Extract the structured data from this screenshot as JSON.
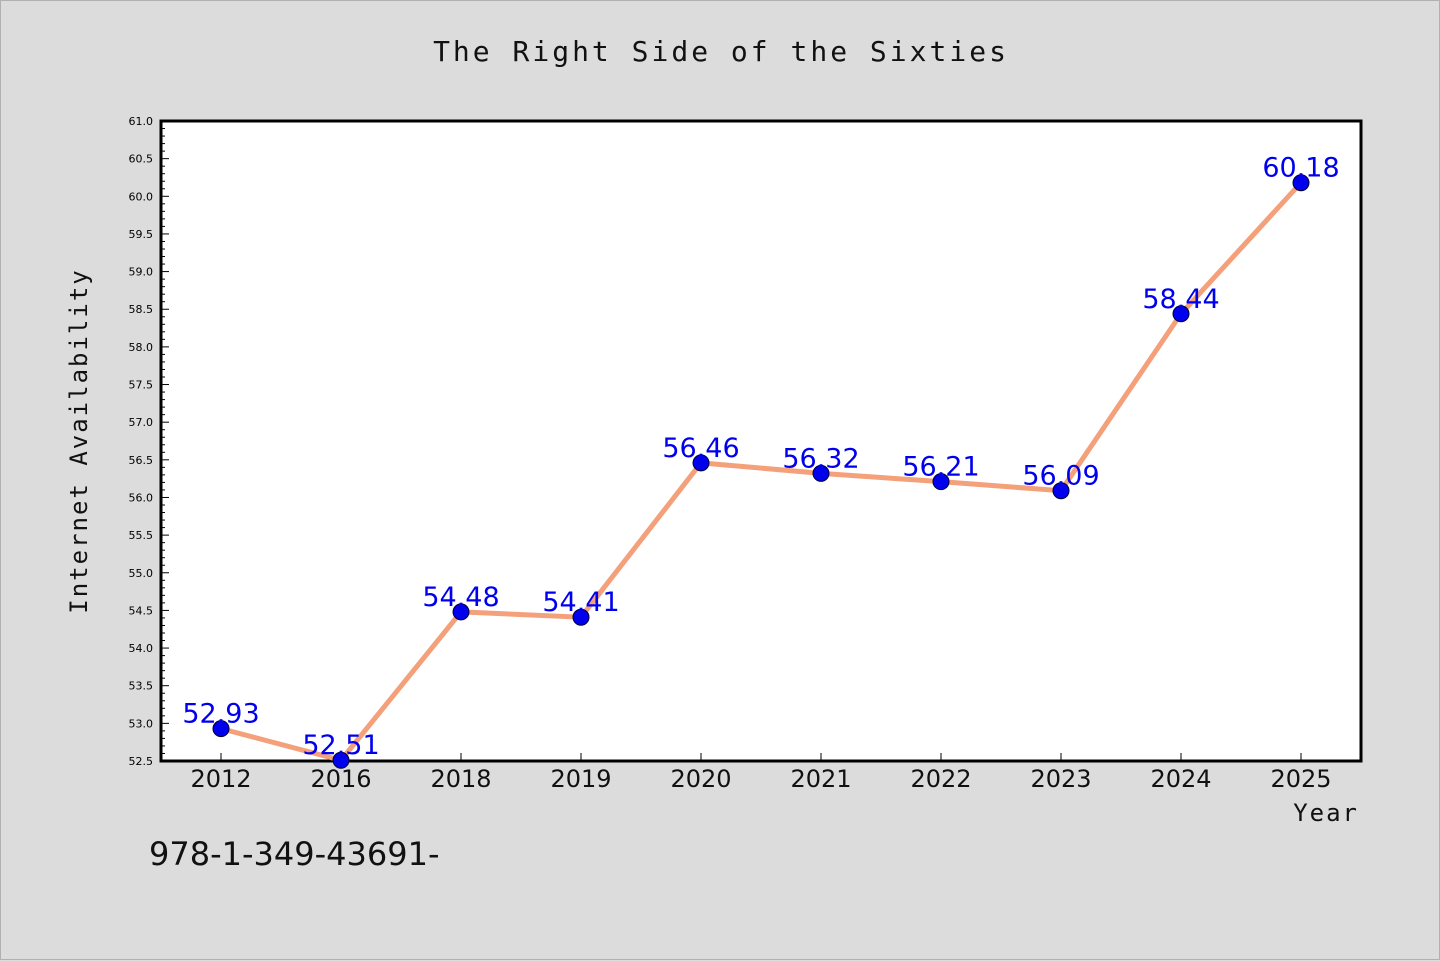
{
  "chart_data": {
    "type": "line",
    "title": "The Right Side of the Sixties",
    "xlabel": "Year",
    "ylabel": "Internet Availability",
    "categories": [
      "2012",
      "2016",
      "2018",
      "2019",
      "2020",
      "2021",
      "2022",
      "2023",
      "2024",
      "2025"
    ],
    "series": [
      {
        "values": [
          52.93,
          52.51,
          54.48,
          54.41,
          56.46,
          56.32,
          56.21,
          56.09,
          58.44,
          60.18
        ]
      }
    ],
    "ylim": [
      52.5,
      61.0
    ],
    "yticks": [
      "52.5",
      "53.0",
      "53.5",
      "54.0",
      "54.5",
      "55.0",
      "55.5",
      "56.0",
      "56.5",
      "57.0",
      "57.5",
      "58.0",
      "58.5",
      "59.0",
      "59.5",
      "60.0",
      "60.5",
      "61.0"
    ],
    "data_labels": [
      "52.93",
      "52.51",
      "54.48",
      "54.41",
      "56.46",
      "56.32",
      "56.21",
      "56.09",
      "58.44",
      "60.18"
    ],
    "grid": false,
    "colors": {
      "line": "#f4a07a",
      "marker": "#0000ee",
      "label": "#0000ee",
      "background": "#dcdcdc",
      "plot_area": "#ffffff"
    }
  },
  "footnote": "978-1-349-43691-"
}
